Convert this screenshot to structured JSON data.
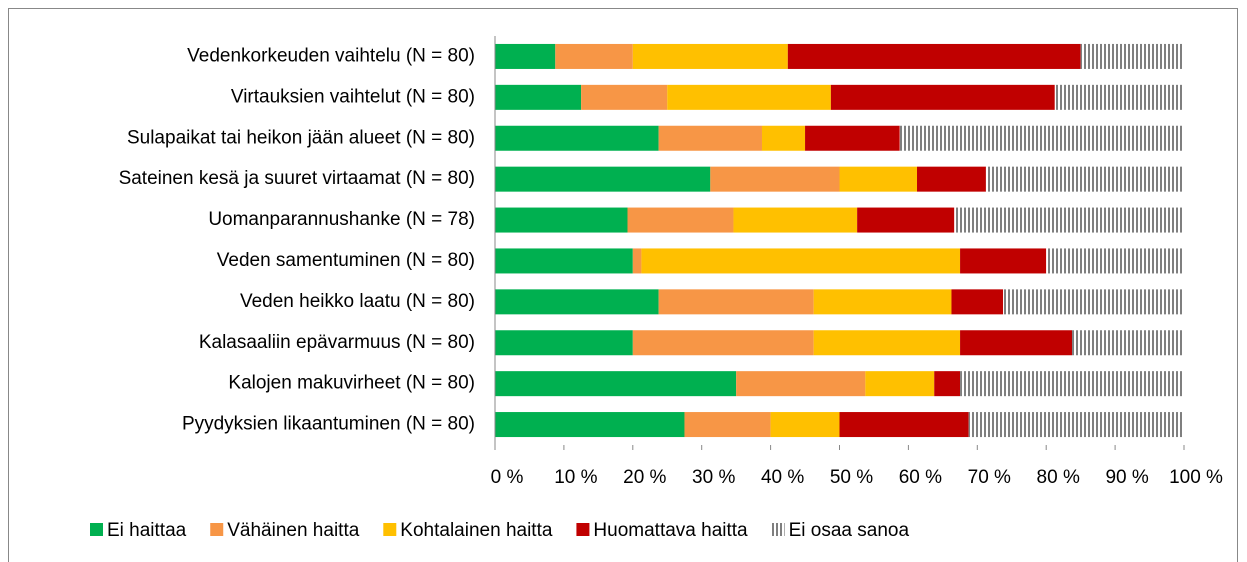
{
  "chart_data": {
    "type": "stacked_bar_horizontal",
    "categories": [
      "Vedenkorkeuden vaihtelu (N = 80)",
      "Virtauksien vaihtelut (N = 80)",
      "Sulapaikat tai heikon jään alueet (N = 80)",
      "Sateinen kesä ja suuret virtaamat (N = 80)",
      "Uomanparannushanke (N = 78)",
      "Veden samentuminen (N = 80)",
      "Veden heikko laatu (N = 80)",
      "Kalasaaliin epävarmuus (N = 80)",
      "Kalojen makuvirheet (N = 80)",
      "Pyydyksien likaantuminen (N = 80)"
    ],
    "series": [
      {
        "name": "Ei haittaa",
        "color": "#00b050",
        "values": [
          8.75,
          12.5,
          23.75,
          31.25,
          19.23,
          20,
          23.75,
          20,
          35,
          27.5
        ]
      },
      {
        "name": "Vähäinen haitta",
        "color": "#f79646",
        "values": [
          11.25,
          12.5,
          15,
          18.75,
          15.38,
          1.25,
          22.5,
          26.25,
          18.75,
          12.5
        ]
      },
      {
        "name": "Kohtalainen haitta",
        "color": "#ffc000",
        "values": [
          22.5,
          23.75,
          6.25,
          11.25,
          17.95,
          46.25,
          20,
          21.25,
          10,
          10
        ]
      },
      {
        "name": "Huomattava haitta",
        "color": "#c00000",
        "values": [
          42.5,
          32.5,
          13.75,
          10,
          14.1,
          12.5,
          7.5,
          16.25,
          3.75,
          18.75
        ]
      },
      {
        "name": "Ei osaa sanoa",
        "color": "#7f7f7f",
        "pattern": "vertical-stripes",
        "values": [
          15,
          18.75,
          41.25,
          28.75,
          33.33,
          20,
          26.25,
          16.25,
          32.5,
          31.25
        ]
      }
    ],
    "xlim": [
      0,
      100
    ],
    "xticks": [
      {
        "value": 0,
        "label": "0 %"
      },
      {
        "value": 10,
        "label": "10 %"
      },
      {
        "value": 20,
        "label": "20 %"
      },
      {
        "value": 30,
        "label": "30 %"
      },
      {
        "value": 40,
        "label": "40 %"
      },
      {
        "value": 50,
        "label": "50 %"
      },
      {
        "value": 60,
        "label": "60 %"
      },
      {
        "value": 70,
        "label": "70 %"
      },
      {
        "value": 80,
        "label": "80 %"
      },
      {
        "value": 90,
        "label": "90 %"
      },
      {
        "value": 100,
        "label": "100 %"
      }
    ],
    "legend": "bottom"
  }
}
